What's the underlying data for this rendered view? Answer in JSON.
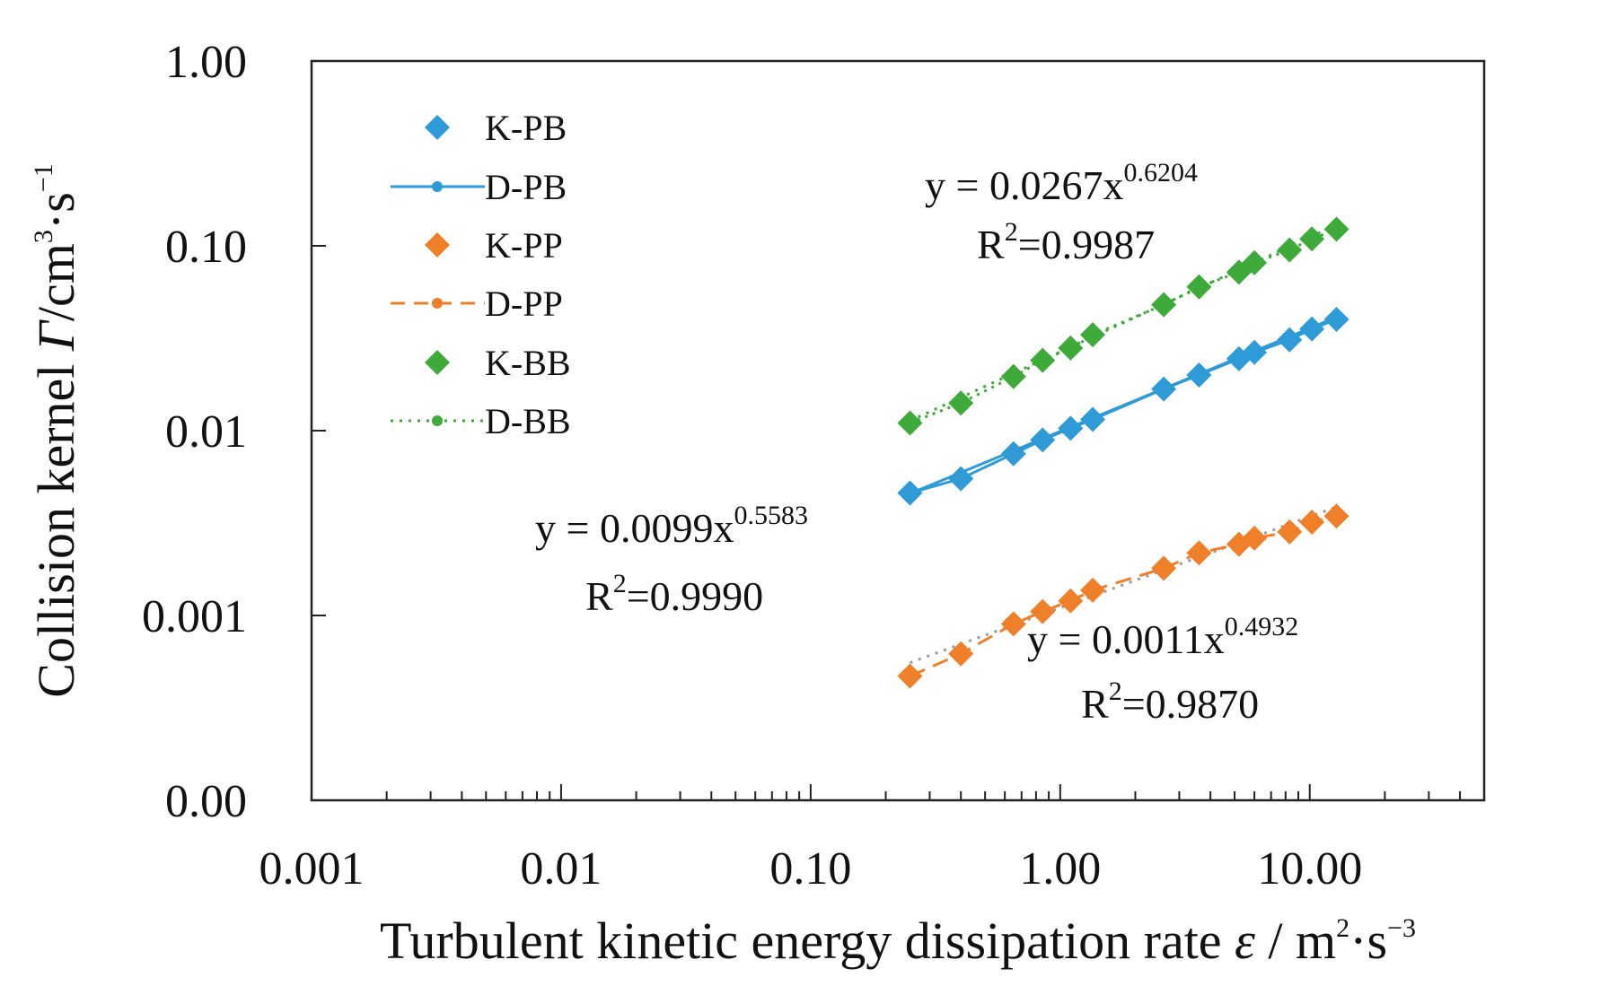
{
  "chart_data": {
    "type": "scatter",
    "xscale": "log",
    "yscale": "log",
    "xlim": [
      0.001,
      50
    ],
    "ylim": [
      0.0001,
      1
    ],
    "x_tick_values": [
      0.001,
      0.01,
      0.1,
      1,
      10
    ],
    "x_tick_labels": [
      "0.001",
      "0.01",
      "0.10",
      "1.00",
      "10.00"
    ],
    "y_tick_values": [
      0.0001,
      0.001,
      0.01,
      0.1,
      1
    ],
    "y_tick_labels": [
      "0.00",
      "0.001",
      "0.01",
      "0.10",
      "1.00"
    ],
    "xlabel": {
      "main": "Turbulent kinetic energy dissipation rate ",
      "symbol": "ε",
      "sep": " / m",
      "sup1": "2",
      "mid": "·s",
      "sup2": "−3"
    },
    "ylabel": {
      "main": "Collision kernel ",
      "symbol": "Γ",
      "unit": "/cm",
      "sup1": "3",
      "mid": "·s",
      "sup2": "−1"
    },
    "legend_position": "top-left",
    "legend": [
      {
        "label": "K-PB",
        "color": "#2E9BD6",
        "kind": "marker"
      },
      {
        "label": "D-PB",
        "color": "#2E9BD6",
        "kind": "solid"
      },
      {
        "label": "K-PP",
        "color": "#F07F2A",
        "kind": "marker"
      },
      {
        "label": "D-PP",
        "color": "#F07F2A",
        "kind": "dashed"
      },
      {
        "label": "K-BB",
        "color": "#3DAA3A",
        "kind": "marker"
      },
      {
        "label": "D-BB",
        "color": "#3DAA3A",
        "kind": "dotted"
      }
    ],
    "x": [
      0.25,
      0.4,
      0.65,
      0.85,
      1.1,
      1.35,
      2.6,
      3.6,
      5.2,
      6.0,
      8.3,
      10.2,
      12.8
    ],
    "series": [
      {
        "name": "K-PB",
        "color": "#2E9BD6",
        "values": [
          0.0046,
          0.0055,
          0.0075,
          0.0089,
          0.0103,
          0.0115,
          0.0168,
          0.02,
          0.0245,
          0.0265,
          0.031,
          0.0355,
          0.04
        ]
      },
      {
        "name": "K-PP",
        "color": "#F07F2A",
        "values": [
          0.00047,
          0.00062,
          0.0009,
          0.00105,
          0.0012,
          0.00137,
          0.0018,
          0.00218,
          0.00243,
          0.00262,
          0.00283,
          0.0032,
          0.00345
        ]
      },
      {
        "name": "K-BB",
        "color": "#3DAA3A",
        "values": [
          0.011,
          0.0141,
          0.0196,
          0.024,
          0.028,
          0.033,
          0.048,
          0.06,
          0.072,
          0.081,
          0.095,
          0.109,
          0.123
        ]
      }
    ],
    "fits": [
      {
        "name": "D-PB",
        "color": "#2E9BD6",
        "coef": 0.0099,
        "exp": 0.5583,
        "eq_base": "y = 0.0099x",
        "eq_exp": "0.5583",
        "r2_prefix": "R",
        "r2_sup": "2",
        "r2_value": "=0.9990"
      },
      {
        "name": "D-PP",
        "color": "#F07F2A",
        "coef": 0.0011,
        "exp": 0.4932,
        "eq_base": "y = 0.0011x",
        "eq_exp": "0.4932",
        "r2_prefix": "R",
        "r2_sup": "2",
        "r2_value": "=0.9870"
      },
      {
        "name": "D-BB",
        "color": "#3DAA3A",
        "coef": 0.0267,
        "exp": 0.6204,
        "eq_base": "y = 0.0267x",
        "eq_exp": "0.6204",
        "r2_prefix": "R",
        "r2_sup": "2",
        "r2_value": "=0.9987"
      }
    ]
  }
}
